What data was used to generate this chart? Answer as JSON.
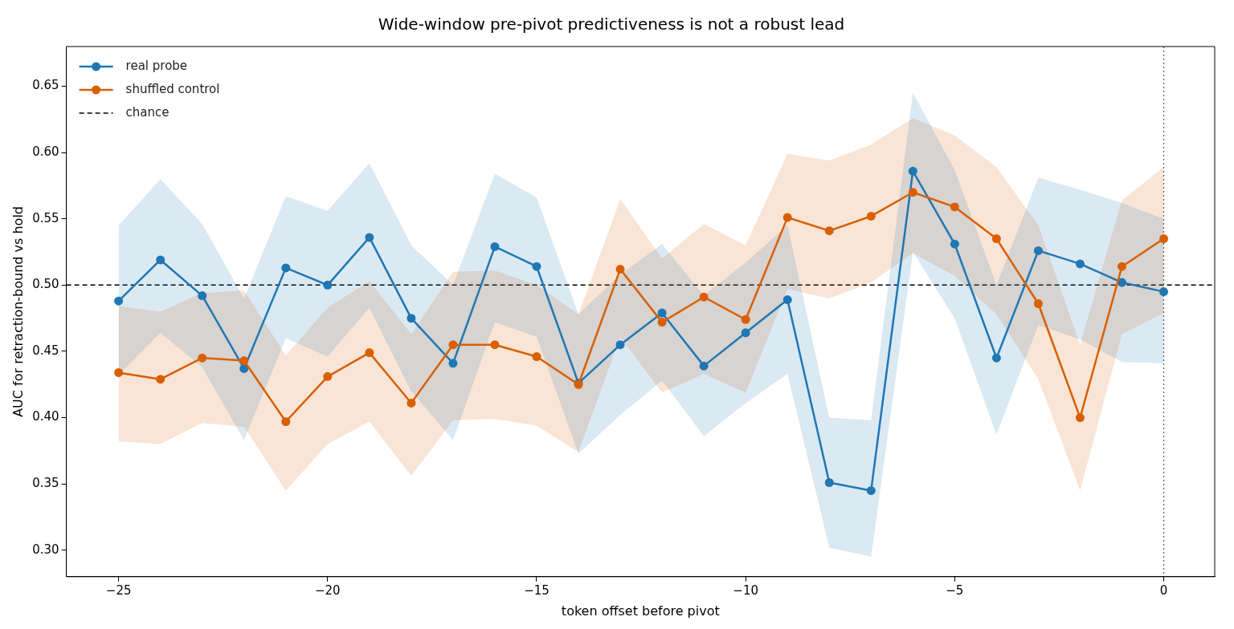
{
  "chart_data": {
    "type": "line",
    "title": "Wide-window pre-pivot predictiveness is not a robust lead",
    "xlabel": "token offset before pivot",
    "ylabel": "AUC for retraction-bound vs hold",
    "x": [
      -25,
      -24,
      -23,
      -22,
      -21,
      -20,
      -19,
      -18,
      -17,
      -16,
      -15,
      -14,
      -13,
      -12,
      -11,
      -10,
      -9,
      -8,
      -7,
      -6,
      -5,
      -4,
      -3,
      -2,
      -1,
      0
    ],
    "series": [
      {
        "name": "real probe",
        "color": "#1f77b4",
        "values": [
          0.488,
          0.519,
          0.492,
          0.437,
          0.513,
          0.5,
          0.536,
          0.475,
          0.441,
          0.529,
          0.514,
          0.426,
          0.455,
          0.479,
          0.439,
          0.464,
          0.489,
          0.351,
          0.345,
          0.586,
          0.531,
          0.445,
          0.526,
          0.516,
          0.502,
          0.495
        ],
        "lower": [
          0.432,
          0.464,
          0.438,
          0.383,
          0.46,
          0.446,
          0.483,
          0.42,
          0.383,
          0.472,
          0.461,
          0.373,
          0.402,
          0.428,
          0.386,
          0.411,
          0.433,
          0.302,
          0.295,
          0.525,
          0.475,
          0.387,
          0.47,
          0.459,
          0.442,
          0.441
        ],
        "upper": [
          0.545,
          0.58,
          0.546,
          0.49,
          0.567,
          0.556,
          0.592,
          0.53,
          0.5,
          0.584,
          0.566,
          0.478,
          0.508,
          0.531,
          0.492,
          0.517,
          0.545,
          0.4,
          0.398,
          0.645,
          0.587,
          0.5,
          0.581,
          0.572,
          0.562,
          0.55
        ]
      },
      {
        "name": "shuffled control",
        "color": "#d95f02",
        "values": [
          0.434,
          0.429,
          0.445,
          0.443,
          0.397,
          0.431,
          0.449,
          0.411,
          0.455,
          0.455,
          0.446,
          0.425,
          0.512,
          0.472,
          0.491,
          0.474,
          0.551,
          0.541,
          0.552,
          0.57,
          0.559,
          0.535,
          0.486,
          0.4,
          0.514,
          0.535
        ],
        "lower": [
          0.382,
          0.38,
          0.396,
          0.393,
          0.345,
          0.38,
          0.397,
          0.356,
          0.398,
          0.399,
          0.394,
          0.374,
          0.461,
          0.419,
          0.433,
          0.419,
          0.497,
          0.49,
          0.502,
          0.524,
          0.507,
          0.478,
          0.429,
          0.345,
          0.463,
          0.479
        ],
        "upper": [
          0.484,
          0.48,
          0.494,
          0.496,
          0.447,
          0.483,
          0.503,
          0.463,
          0.51,
          0.511,
          0.5,
          0.478,
          0.565,
          0.52,
          0.546,
          0.53,
          0.599,
          0.594,
          0.606,
          0.626,
          0.613,
          0.589,
          0.545,
          0.455,
          0.564,
          0.589
        ]
      }
    ],
    "ref_lines": [
      {
        "axis": "y",
        "value": 0.5,
        "label": "chance",
        "color": "#000000",
        "line_style": "dashed"
      },
      {
        "axis": "x",
        "value": 0,
        "color": "#555555",
        "line_style": "dotted"
      }
    ],
    "xlim": [
      -26.25,
      1.22
    ],
    "ylim": [
      0.28,
      0.68
    ],
    "xticks": [
      {
        "value": -25,
        "label": "−25"
      },
      {
        "value": -20,
        "label": "−20"
      },
      {
        "value": -15,
        "label": "−15"
      },
      {
        "value": -10,
        "label": "−10"
      },
      {
        "value": -5,
        "label": "−5"
      },
      0
    ],
    "yticks": [
      {
        "value": 0.3,
        "label": "0.30"
      },
      {
        "value": 0.35,
        "label": "0.35"
      },
      {
        "value": 0.4,
        "label": "0.40"
      },
      {
        "value": 0.45,
        "label": "0.45"
      },
      {
        "value": 0.5,
        "label": "0.50"
      },
      {
        "value": 0.55,
        "label": "0.55"
      },
      {
        "value": 0.6,
        "label": "0.60"
      },
      {
        "value": 0.65,
        "label": "0.65"
      }
    ],
    "grid": false,
    "legend": "top left",
    "marker": "circle",
    "line_style": "solid"
  }
}
